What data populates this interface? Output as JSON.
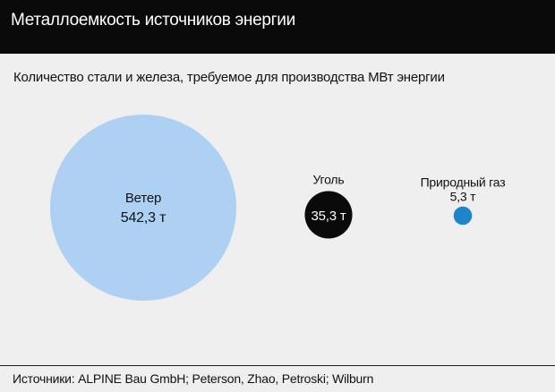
{
  "header": {
    "title": "Металлоемкость источников энергии"
  },
  "subtitle": "Количество стали и железа, требуемое для производства МВт энергии",
  "footer": {
    "sources": "Источники: ALPINE Bau GmbH; Peterson, Zhao, Petroski; Wilburn"
  },
  "colors": {
    "wind": "#aed1f3",
    "coal": "#0a0a0a",
    "gas": "#1c86c8",
    "background": "#efefef",
    "header": "#0a0a0a"
  },
  "chart_data": {
    "type": "bubble",
    "title": "Металлоемкость источников энергии",
    "subtitle": "Количество стали и железа, требуемое для производства МВт энергии",
    "unit": "т",
    "series": [
      {
        "name": "Ветер",
        "value": 542.3,
        "value_label": "542,3 т",
        "label_position": "inside"
      },
      {
        "name": "Уголь",
        "value": 35.3,
        "value_label": "35,3 т",
        "label_position": "name-above-value-inside"
      },
      {
        "name": "Природный газ",
        "value": 5.3,
        "value_label": "5,3 т",
        "label_position": "above"
      }
    ]
  }
}
